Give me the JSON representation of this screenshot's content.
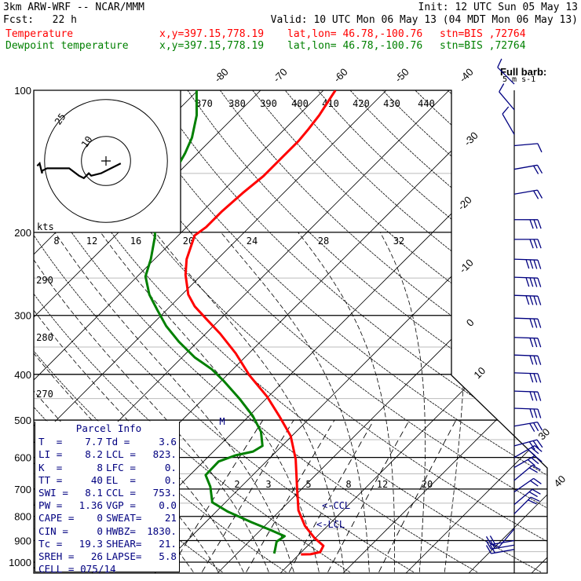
{
  "header": {
    "title": "3km ARW-WRF -- NCAR/MMM",
    "init": "Init: 12 UTC Sun 05 May 13",
    "fcst": "Fcst:   22 h",
    "valid": "Valid: 10 UTC Mon 06 May 13 (04 MDT Mon 06 May 13)"
  },
  "legend": [
    {
      "name": "Temperature",
      "xy": "x,y=397.15,778.19",
      "latlon": "lat,lon= 46.78,-100.76",
      "stn": "stn=BIS ,72764",
      "color": "#ff0000"
    },
    {
      "name": "Dewpoint temperature",
      "xy": "x,y=397.15,778.19",
      "latlon": "lat,lon= 46.78,-100.76",
      "stn": "stn=BIS ,72764",
      "color": "#008000"
    }
  ],
  "chart_data": {
    "type": "skew-t",
    "pressure_labels": [
      "100",
      "200",
      "300",
      "400",
      "500",
      "600",
      "700",
      "800",
      "900",
      "1000"
    ],
    "isotherm_labels": [
      "-80",
      "-70",
      "-60",
      "-50",
      "-40",
      "-30",
      "-20",
      "-10",
      "0",
      "10",
      "30",
      "40"
    ],
    "theta_labels": [
      "370",
      "380",
      "390",
      "400",
      "410",
      "420",
      "430",
      "440",
      "290",
      "280",
      "270"
    ],
    "upper_labels": [
      "8",
      "12",
      "16",
      "20",
      "24",
      "28",
      "32"
    ],
    "mixing_ratio_labels": [
      "2",
      "3",
      "5",
      "8",
      "12",
      "20"
    ],
    "hodograph": {
      "unit_label": "kts",
      "ring_labels": [
        "10",
        "25"
      ],
      "rings_kts": [
        10,
        25
      ]
    },
    "barb_legend": {
      "line1": "Full barb:",
      "line2": "5 m s-1"
    },
    "markers": {
      "m": "M",
      "ccl": "<-CCL",
      "lcl": "<-LCL"
    },
    "temperature": {
      "color": "#ff0000",
      "p": [
        100,
        113,
        121,
        128,
        141,
        152,
        165,
        181,
        195,
        203,
        228,
        246,
        271,
        287,
        304,
        328,
        361,
        402,
        446,
        490,
        540,
        605,
        692,
        777,
        838,
        888,
        923,
        952,
        962,
        963
      ],
      "t": [
        -58.1,
        -56.7,
        -56.2,
        -55.9,
        -55.9,
        -55.9,
        -56.5,
        -56.9,
        -56.9,
        -57.4,
        -54.9,
        -52.6,
        -49.0,
        -46.1,
        -42.5,
        -37.7,
        -32.1,
        -26.4,
        -20.2,
        -15.2,
        -10.2,
        -5.7,
        -1.1,
        2.9,
        6.4,
        9.8,
        12.5,
        13.0,
        11.8,
        10.3
      ]
    },
    "dewpoint": {
      "color": "#008000",
      "p": [
        100,
        113,
        126,
        136,
        147,
        158,
        171,
        185,
        203,
        228,
        248,
        271,
        292,
        316,
        341,
        368,
        390,
        413,
        451,
        490,
        529,
        567,
        583,
        594,
        612,
        654,
        692,
        747,
        782,
        823,
        855,
        881,
        905,
        940,
        959
      ],
      "t": [
        -80.2,
        -76.2,
        -73.4,
        -72.0,
        -70.9,
        -70.2,
        -69.2,
        -67.1,
        -63.7,
        -60.6,
        -58.7,
        -55.2,
        -51.5,
        -47.5,
        -43.0,
        -38.0,
        -33.4,
        -29.6,
        -24.2,
        -19.4,
        -15.6,
        -13.1,
        -13.7,
        -15.9,
        -17.6,
        -17.5,
        -14.9,
        -12.1,
        -8.1,
        -2.7,
        1.6,
        4.8,
        4.4,
        5.4,
        5.9
      ]
    },
    "winds": [
      [
        97,
        315,
        5
      ],
      [
        110,
        320,
        5
      ],
      [
        124,
        330,
        5
      ],
      [
        131,
        85,
        7
      ],
      [
        147,
        80,
        10
      ],
      [
        166,
        80,
        12
      ],
      [
        188,
        90,
        15
      ],
      [
        207,
        90,
        17
      ],
      [
        228,
        92,
        20
      ],
      [
        249,
        92,
        20
      ],
      [
        272,
        92,
        20
      ],
      [
        304,
        92,
        17
      ],
      [
        334,
        92,
        17
      ],
      [
        364,
        92,
        17
      ],
      [
        397,
        92,
        17
      ],
      [
        434,
        92,
        17
      ],
      [
        472,
        92,
        15
      ],
      [
        515,
        80,
        15
      ],
      [
        567,
        75,
        15
      ],
      [
        600,
        60,
        15
      ],
      [
        630,
        60,
        15
      ],
      [
        671,
        50,
        12
      ],
      [
        710,
        55,
        12
      ],
      [
        755,
        50,
        10
      ],
      [
        790,
        45,
        10
      ],
      [
        850,
        220,
        7
      ],
      [
        900,
        260,
        10
      ],
      [
        920,
        260,
        10
      ],
      [
        940,
        260,
        10
      ]
    ],
    "hodograph_trace_kts": [
      [
        6,
        -1
      ],
      [
        2,
        -3
      ],
      [
        -2,
        -5
      ],
      [
        -6,
        -6
      ],
      [
        -7,
        -5
      ],
      [
        -9,
        -7
      ],
      [
        -11,
        -6
      ],
      [
        -15,
        -3
      ],
      [
        -21,
        -3
      ],
      [
        -24,
        -3
      ],
      [
        -26,
        -4
      ],
      [
        -26,
        -5
      ],
      [
        -27,
        -1
      ],
      [
        -28,
        -2
      ]
    ]
  },
  "parcel_info": {
    "title": "Parcel Info",
    "rows": [
      [
        "T  =",
        "7.7",
        "Td =",
        "3.6"
      ],
      [
        "LI =",
        "8.2",
        "LCL =",
        "823."
      ],
      [
        "K  =",
        "8",
        "LFC =",
        "0."
      ],
      [
        "TT =",
        "40",
        "EL  =",
        "0."
      ],
      [
        "SWI =",
        "8.1",
        "CCL =",
        "753."
      ],
      [
        "PW =",
        "1.36",
        "VGP =",
        "0.0"
      ],
      [
        "CAPE =",
        "0",
        "SWEAT=",
        "21"
      ],
      [
        "CIN =",
        "0",
        "HWBZ=",
        "1830."
      ],
      [
        "Tc =",
        "19.3",
        "SHEAR=",
        "21."
      ],
      [
        "SREH =",
        "26",
        "LAPSE=",
        "5.8"
      ]
    ],
    "cell": "CELL = 075/14"
  }
}
